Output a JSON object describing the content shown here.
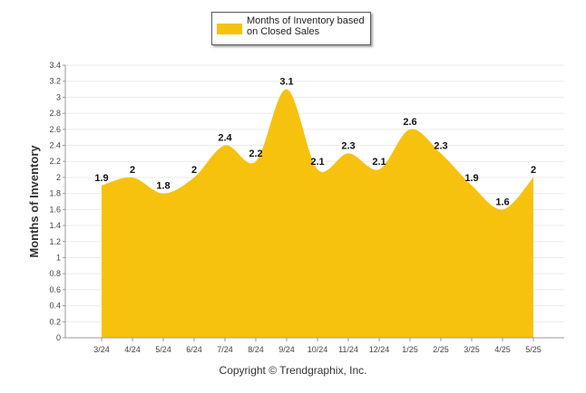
{
  "chart_data": {
    "type": "area",
    "categories": [
      "3/24",
      "4/24",
      "5/24",
      "6/24",
      "7/24",
      "8/24",
      "9/24",
      "10/24",
      "11/24",
      "12/24",
      "1/25",
      "2/25",
      "3/25",
      "4/25",
      "5/25"
    ],
    "series": [
      {
        "name": "Months of Inventory based on Closed Sales",
        "values": [
          1.9,
          2,
          1.8,
          2,
          2.4,
          2.2,
          3.1,
          2.1,
          2.3,
          2.1,
          2.6,
          2.3,
          1.9,
          1.6,
          2
        ]
      }
    ],
    "data_labels": [
      "1.9",
      "2",
      "1.8",
      "2",
      "2.4",
      "2.2",
      "3.1",
      "2.1",
      "2.3",
      "2.1",
      "2.6",
      "2.3",
      "1.9",
      "1.6",
      "2"
    ],
    "ylabel": "Months of Inventory",
    "xlabel": "",
    "ylim": [
      0,
      3.4
    ],
    "yticks": [
      "0",
      "0.2",
      "0.4",
      "0.6",
      "0.8",
      "1",
      "1.2",
      "1.4",
      "1.6",
      "1.8",
      "2",
      "2.2",
      "2.4",
      "2.6",
      "2.8",
      "3",
      "3.2",
      "3.4"
    ],
    "grid": true,
    "legend_position": "top-center",
    "color": "#f7c20e"
  },
  "legend": {
    "label": "Months of Inventory based on Closed Sales"
  },
  "footer": {
    "copyright": "Copyright © Trendgraphix, Inc."
  }
}
